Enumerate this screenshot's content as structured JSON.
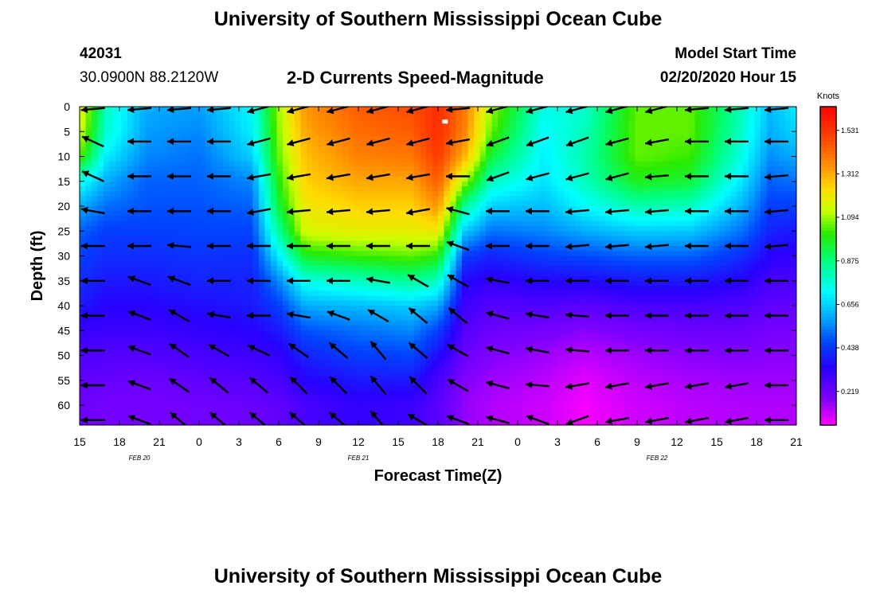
{
  "header": {
    "title": "University of Southern Mississippi Ocean Cube",
    "station_id": "42031",
    "location": "30.0900N 88.2120W",
    "subtitle": "2-D Currents Speed-Magnitude",
    "model_label": "Model Start Time",
    "model_time": "02/20/2020 Hour 15",
    "footer_title": "University of Southern Mississippi Ocean Cube"
  },
  "chart_data": {
    "type": "heatmap",
    "title": "2-D Currents Speed-Magnitude",
    "xlabel": "Forecast Time(Z)",
    "ylabel": "Depth (ft)",
    "x_hours_range": [
      0,
      54
    ],
    "x_tick_labels": [
      "15",
      "18",
      "21",
      "0",
      "3",
      "6",
      "9",
      "12",
      "15",
      "18",
      "21",
      "0",
      "3",
      "6",
      "9",
      "12",
      "15",
      "18",
      "21"
    ],
    "x_date_labels": [
      {
        "label": "FEB  20",
        "at_tick": 1.5
      },
      {
        "label": "FEB  21",
        "at_tick": 7
      },
      {
        "label": "FEB  22",
        "at_tick": 14.5
      }
    ],
    "y_ticks": [
      0,
      5,
      10,
      15,
      20,
      25,
      30,
      35,
      40,
      45,
      50,
      55,
      60
    ],
    "ylim": [
      0,
      64
    ],
    "colorbar": {
      "unit": "Knots",
      "ticks": [
        1.531,
        1.312,
        1.094,
        0.875,
        0.656,
        0.438,
        0.219
      ],
      "range": [
        0.05,
        1.65
      ]
    },
    "speed_profiles_knots": [
      {
        "hour": 0,
        "v": [
          1.2,
          1.15,
          1.05,
          0.75,
          0.6,
          0.5,
          0.45,
          0.42,
          0.38,
          0.32,
          0.27,
          0.24,
          0.22
        ]
      },
      {
        "hour": 2,
        "v": [
          0.8,
          0.78,
          0.7,
          0.6,
          0.52,
          0.45,
          0.42,
          0.38,
          0.34,
          0.3,
          0.26,
          0.23,
          0.2
        ]
      },
      {
        "hour": 5,
        "v": [
          0.6,
          0.58,
          0.55,
          0.5,
          0.48,
          0.45,
          0.42,
          0.38,
          0.34,
          0.3,
          0.26,
          0.22,
          0.2
        ]
      },
      {
        "hour": 9,
        "v": [
          0.58,
          0.55,
          0.52,
          0.5,
          0.48,
          0.46,
          0.43,
          0.4,
          0.36,
          0.32,
          0.28,
          0.24,
          0.21
        ]
      },
      {
        "hour": 13,
        "v": [
          0.72,
          0.7,
          0.65,
          0.55,
          0.5,
          0.46,
          0.42,
          0.4,
          0.38,
          0.34,
          0.3,
          0.26,
          0.22
        ]
      },
      {
        "hour": 15,
        "v": [
          1.1,
          1.08,
          1.05,
          1.0,
          0.95,
          0.85,
          0.7,
          0.55,
          0.45,
          0.38,
          0.32,
          0.28,
          0.24
        ]
      },
      {
        "hour": 17,
        "v": [
          1.35,
          1.32,
          1.28,
          1.25,
          1.2,
          1.15,
          0.98,
          0.75,
          0.6,
          0.48,
          0.4,
          0.34,
          0.28
        ]
      },
      {
        "hour": 21,
        "v": [
          1.45,
          1.42,
          1.38,
          1.32,
          1.25,
          1.18,
          1.02,
          0.8,
          0.62,
          0.52,
          0.45,
          0.38,
          0.32
        ]
      },
      {
        "hour": 25,
        "v": [
          1.48,
          1.45,
          1.4,
          1.32,
          1.25,
          1.18,
          1.05,
          0.85,
          0.65,
          0.55,
          0.46,
          0.38,
          0.3
        ]
      },
      {
        "hour": 27,
        "v": [
          1.55,
          1.55,
          1.52,
          1.45,
          1.35,
          1.2,
          1.0,
          0.8,
          0.6,
          0.45,
          0.36,
          0.28,
          0.25
        ]
      },
      {
        "hour": 29,
        "v": [
          1.4,
          1.38,
          1.3,
          1.1,
          0.85,
          0.65,
          0.45,
          0.35,
          0.3,
          0.26,
          0.22,
          0.18,
          0.16
        ]
      },
      {
        "hour": 31,
        "v": [
          1.1,
          1.05,
          0.95,
          0.8,
          0.65,
          0.52,
          0.4,
          0.32,
          0.26,
          0.22,
          0.18,
          0.15,
          0.13
        ]
      },
      {
        "hour": 35,
        "v": [
          0.75,
          0.72,
          0.7,
          0.68,
          0.62,
          0.55,
          0.45,
          0.35,
          0.27,
          0.2,
          0.15,
          0.12,
          0.1
        ]
      },
      {
        "hour": 38,
        "v": [
          0.78,
          0.8,
          0.82,
          0.8,
          0.72,
          0.6,
          0.47,
          0.35,
          0.25,
          0.17,
          0.12,
          0.08,
          0.06
        ]
      },
      {
        "hour": 42,
        "v": [
          1.05,
          1.05,
          1.05,
          0.98,
          0.82,
          0.65,
          0.5,
          0.38,
          0.28,
          0.2,
          0.15,
          0.12,
          0.1
        ]
      },
      {
        "hour": 46,
        "v": [
          1.05,
          1.05,
          1.02,
          0.95,
          0.8,
          0.64,
          0.5,
          0.38,
          0.28,
          0.22,
          0.17,
          0.14,
          0.12
        ]
      },
      {
        "hour": 50,
        "v": [
          0.8,
          0.78,
          0.74,
          0.68,
          0.6,
          0.52,
          0.42,
          0.34,
          0.27,
          0.22,
          0.18,
          0.15,
          0.13
        ]
      },
      {
        "hour": 52,
        "v": [
          0.62,
          0.6,
          0.56,
          0.5,
          0.45,
          0.4,
          0.34,
          0.28,
          0.24,
          0.2,
          0.17,
          0.15,
          0.13
        ]
      },
      {
        "hour": 54,
        "v": [
          0.7,
          0.66,
          0.6,
          0.52,
          0.45,
          0.38,
          0.32,
          0.28,
          0.24,
          0.2,
          0.17,
          0.15,
          0.13
        ]
      }
    ],
    "vectors": {
      "hours": [
        1,
        4.5,
        7.5,
        10.5,
        13.5,
        16.5,
        19.5,
        22.5,
        25.5,
        28.5,
        31.5,
        34.5,
        37.5,
        40.5,
        43.5,
        46.5,
        49.5,
        52.5
      ],
      "depths": [
        0,
        7,
        14,
        21,
        28,
        35,
        42,
        49,
        56,
        63
      ],
      "angles_deg": [
        [
          185,
          185,
          185,
          185,
          195,
          195,
          195,
          195,
          195,
          185,
          195,
          195,
          195,
          195,
          195,
          185,
          185,
          185
        ],
        [
          155,
          180,
          180,
          180,
          195,
          195,
          195,
          195,
          195,
          190,
          200,
          200,
          200,
          195,
          190,
          180,
          180,
          180
        ],
        [
          155,
          180,
          180,
          180,
          190,
          190,
          190,
          190,
          190,
          180,
          200,
          195,
          195,
          195,
          185,
          180,
          180,
          185
        ],
        [
          170,
          180,
          180,
          180,
          190,
          185,
          185,
          185,
          190,
          165,
          180,
          180,
          185,
          185,
          185,
          180,
          180,
          185
        ],
        [
          180,
          180,
          175,
          180,
          180,
          180,
          180,
          180,
          180,
          160,
          180,
          180,
          185,
          185,
          185,
          180,
          180,
          185
        ],
        [
          180,
          160,
          160,
          180,
          180,
          180,
          180,
          170,
          150,
          150,
          170,
          180,
          180,
          180,
          180,
          180,
          180,
          180
        ],
        [
          180,
          160,
          150,
          170,
          180,
          170,
          160,
          150,
          140,
          140,
          165,
          170,
          175,
          180,
          180,
          180,
          180,
          180
        ],
        [
          180,
          160,
          145,
          150,
          155,
          145,
          140,
          130,
          140,
          150,
          165,
          170,
          175,
          180,
          180,
          180,
          180,
          180
        ],
        [
          180,
          160,
          145,
          140,
          140,
          135,
          135,
          130,
          135,
          150,
          165,
          175,
          190,
          190,
          190,
          190,
          190,
          180
        ],
        [
          180,
          160,
          140,
          140,
          140,
          140,
          140,
          130,
          150,
          160,
          165,
          160,
          200,
          190,
          190,
          190,
          190,
          180
        ]
      ]
    },
    "marker": {
      "hour": 27.5,
      "depth": 3
    }
  }
}
